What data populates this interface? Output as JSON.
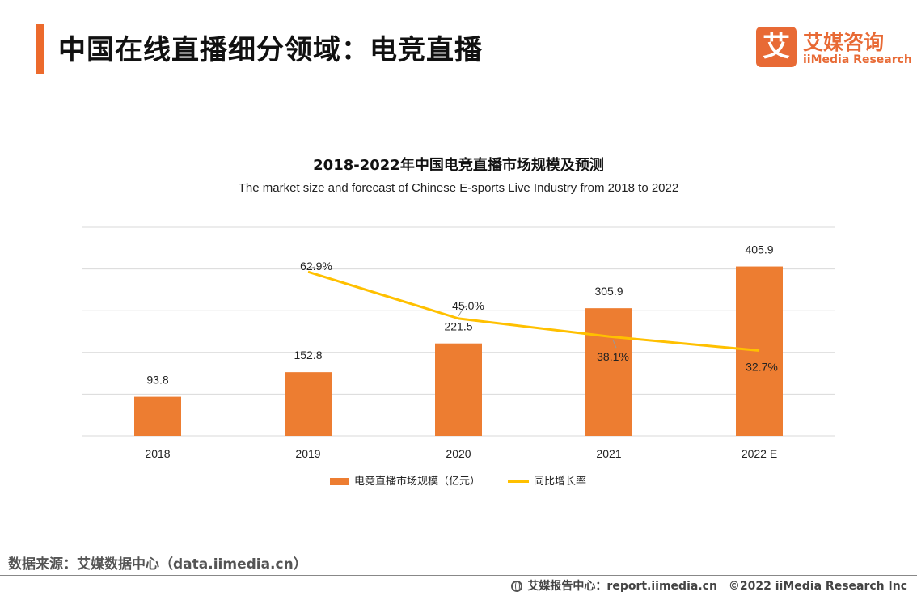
{
  "header": {
    "title": "中国在线直播细分领域：电竞直播"
  },
  "logo": {
    "mark": "艾",
    "name_cn": "艾媒咨询",
    "name_en": "iiMedia Research"
  },
  "chart_data": {
    "type": "bar",
    "title": "2018-2022年中国电竞直播市场规模及预测",
    "subtitle": "The  market size and forecast of Chinese E-sports Live Industry from 2018 to 2022",
    "categories": [
      "2018",
      "2019",
      "2020",
      "2021",
      "2022 E"
    ],
    "series": [
      {
        "name": "电竞直播市场规模（亿元）",
        "type": "bar",
        "color": "#ed7d31",
        "values": [
          93.8,
          152.8,
          221.5,
          305.9,
          405.9
        ],
        "labels": [
          "93.8",
          "152.8",
          "221.5",
          "305.9",
          "405.9"
        ]
      },
      {
        "name": "同比增长率",
        "type": "line",
        "color": "#ffc000",
        "values": [
          null,
          62.9,
          45.0,
          38.1,
          32.7
        ],
        "labels": [
          "",
          "62.9%",
          "45.0%",
          "38.1%",
          "32.7%"
        ]
      }
    ],
    "ylim": [
      0,
      500
    ],
    "y2lim": [
      0,
      80
    ],
    "grid": true,
    "legend": "bottom"
  },
  "source": "数据来源：艾媒数据中心（data.iimedia.cn）",
  "footer": {
    "report_center": "艾媒报告中心：report.iimedia.cn",
    "copyright": "©2022  iiMedia Research  Inc"
  },
  "colors": {
    "accent": "#ec6a2c",
    "bar": "#ed7d31",
    "line": "#ffc000",
    "grid": "#d9d9d9"
  }
}
